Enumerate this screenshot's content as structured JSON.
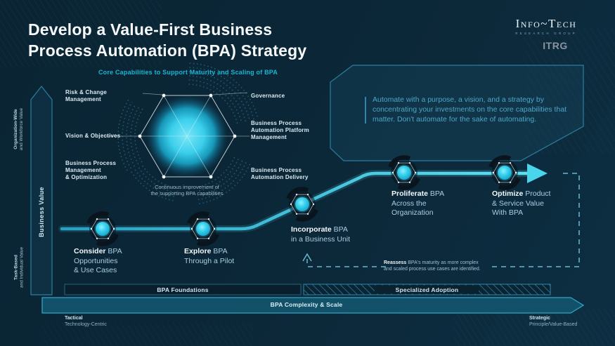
{
  "colors": {
    "background": "#0b2736",
    "accent_cyan": "#3fd2e8",
    "teal_heading": "#17b6d4",
    "quote_text": "#4da5c6",
    "muted_label": "#9db9c9",
    "path_gradient": [
      "#2a9fc0",
      "#5ce0f2"
    ]
  },
  "header": {
    "title_lines": [
      "Develop a Value-First Business",
      "Process Automation (BPA) Strategy"
    ]
  },
  "brand": {
    "name": "Info~Tech",
    "subtitle": "RESEARCH GROUP",
    "itrg": "ITRG"
  },
  "radar": {
    "title": "Core Capabilities to Support Maturity and Scaling of BPA",
    "capabilities": [
      {
        "lines": [
          "Risk & Change",
          "Management"
        ]
      },
      {
        "lines": [
          "Governance"
        ]
      },
      {
        "lines": [
          "Business Process",
          "Automation Platform",
          "Management"
        ]
      },
      {
        "lines": [
          "Vision & Objectives"
        ]
      },
      {
        "lines": [
          "Business Process",
          "Management",
          "& Optimization"
        ]
      },
      {
        "lines": [
          "Business Process",
          "Automation Delivery"
        ]
      }
    ],
    "footnote_lines": [
      "Continuous improvement of",
      "the supporting BPA capabilities"
    ]
  },
  "quote": {
    "text": "Automate with a purpose, a vision, and a strategy by concentrating your investments on the core capabilities that matter. Don't automate for the sake of automating."
  },
  "journey": {
    "stages": [
      {
        "kw": "Consider",
        "r1": " BPA",
        "l2": "Opportunities",
        "l3": "& Use Cases"
      },
      {
        "kw": "Explore",
        "r1": " BPA",
        "l2": "Through a Pilot",
        "l3": ""
      },
      {
        "kw": "Incorporate",
        "r1": " BPA",
        "l2": "in a Business Unit",
        "l3": ""
      },
      {
        "kw": "Proliferate",
        "r1": " BPA",
        "l2": "Across the",
        "l3": "Organization"
      },
      {
        "kw": "Optimize",
        "r1": " Product",
        "l2": "& Service Value",
        "l3": "With BPA"
      }
    ]
  },
  "feedback": {
    "bold": "Reassess",
    "line1_rest": " BPA's maturity as more complex",
    "line2": "and scaled process use cases are identified."
  },
  "axis": {
    "y_title": "Business Value",
    "y_top_lines": [
      "Organization-Wide",
      "and Workforce Value"
    ],
    "y_bottom_lines": [
      "Task-Based",
      "and Individual Value"
    ],
    "x_left": {
      "bold": "Tactical",
      "sub": "Technology-Centric"
    },
    "x_right": {
      "bold": "Strategic",
      "sub": "Principle/Value-Based"
    }
  },
  "bars": {
    "foundations": "BPA Foundations",
    "specialized": "Specialized Adoption",
    "complexity": "BPA Complexity & Scale"
  }
}
